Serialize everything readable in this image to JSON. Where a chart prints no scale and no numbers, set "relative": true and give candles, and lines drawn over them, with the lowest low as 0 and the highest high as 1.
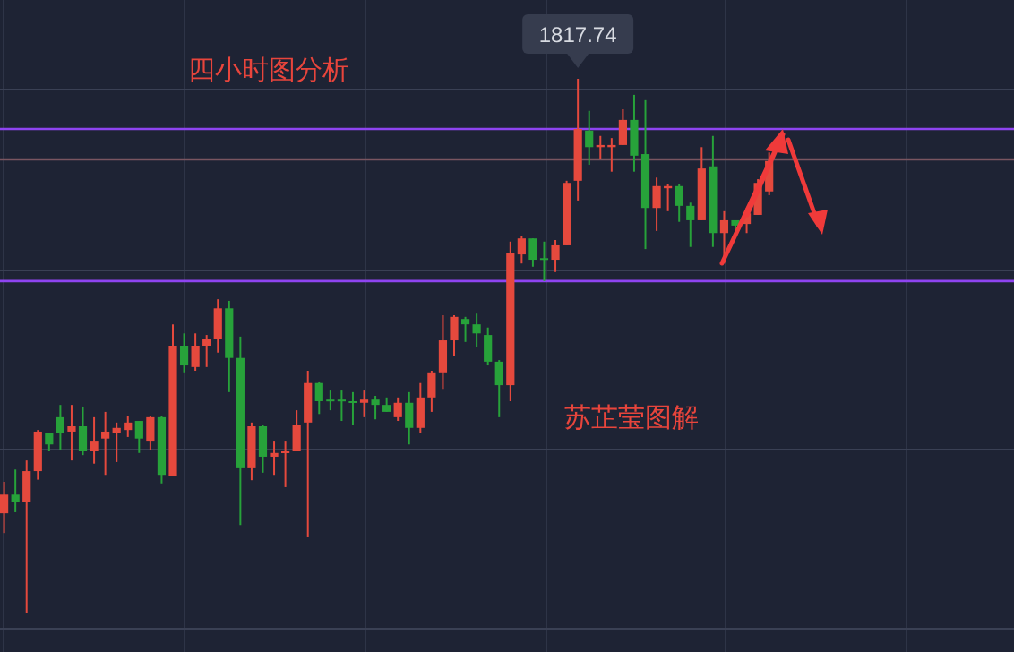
{
  "chart_data": {
    "type": "candlestick",
    "title": "四小时图分析",
    "relative": true,
    "grid": true,
    "categories": [
      null,
      null,
      null,
      null,
      null,
      null,
      null,
      null,
      null,
      null,
      null,
      null,
      null,
      null,
      null,
      null,
      null,
      null,
      null,
      null,
      null,
      null,
      null,
      null,
      null,
      null,
      null,
      null,
      null,
      null,
      null,
      null,
      null,
      null,
      null,
      null,
      null,
      null,
      null,
      null,
      null,
      null,
      null,
      null,
      null,
      null,
      null,
      null,
      null,
      null,
      null,
      null,
      null,
      null,
      null,
      null,
      null,
      null,
      null,
      null,
      null,
      null,
      null,
      null,
      null,
      null,
      null,
      null,
      null
    ],
    "ohlc": [
      [
        0.186,
        0.245,
        0.149,
        0.221
      ],
      [
        0.221,
        0.268,
        0.188,
        0.208
      ],
      [
        0.208,
        0.285,
        0,
        0.265
      ],
      [
        0.265,
        0.342,
        0.249,
        0.339
      ],
      [
        0.336,
        0.336,
        0.302,
        0.315
      ],
      [
        0.366,
        0.389,
        0.305,
        0.336
      ],
      [
        0.339,
        0.389,
        0.285,
        0.349
      ],
      [
        0.349,
        0.386,
        0.295,
        0.302
      ],
      [
        0.302,
        0.366,
        0.279,
        0.322
      ],
      [
        0.326,
        0.376,
        0.258,
        0.339
      ],
      [
        0.336,
        0.356,
        0.282,
        0.346
      ],
      [
        0.342,
        0.369,
        0.329,
        0.356
      ],
      [
        0.359,
        0.359,
        0.299,
        0.326
      ],
      [
        0.322,
        0.369,
        0.305,
        0.366
      ],
      [
        0.366,
        0.369,
        0.242,
        0.258
      ],
      [
        0.255,
        0.54,
        0.255,
        0.5
      ],
      [
        0.5,
        0.523,
        0.45,
        0.463
      ],
      [
        0.46,
        0.523,
        0.453,
        0.5
      ],
      [
        0.5,
        0.52,
        0.46,
        0.513
      ],
      [
        0.513,
        0.587,
        0.487,
        0.57
      ],
      [
        0.57,
        0.584,
        0.413,
        0.477
      ],
      [
        0.477,
        0.517,
        0.164,
        0.272
      ],
      [
        0.272,
        0.356,
        0.248,
        0.349
      ],
      [
        0.349,
        0.352,
        0.262,
        0.292
      ],
      [
        0.292,
        0.322,
        0.258,
        0.299
      ],
      [
        0.299,
        0.322,
        0.235,
        0.302
      ],
      [
        0.302,
        0.379,
        0.302,
        0.352
      ],
      [
        0.356,
        0.453,
        0.141,
        0.43
      ],
      [
        0.43,
        0.433,
        0.372,
        0.396
      ],
      [
        0.399,
        0.416,
        0.379,
        0.396
      ],
      [
        0.399,
        0.416,
        0.359,
        0.396
      ],
      [
        0.396,
        0.413,
        0.352,
        0.393
      ],
      [
        0.393,
        0.416,
        0.366,
        0.399
      ],
      [
        0.399,
        0.406,
        0.362,
        0.389
      ],
      [
        0.389,
        0.403,
        0.376,
        0.376
      ],
      [
        0.366,
        0.403,
        0.359,
        0.393
      ],
      [
        0.393,
        0.413,
        0.315,
        0.346
      ],
      [
        0.346,
        0.43,
        0.336,
        0.403
      ],
      [
        0.403,
        0.453,
        0.376,
        0.45
      ],
      [
        0.45,
        0.557,
        0.419,
        0.51
      ],
      [
        0.51,
        0.557,
        0.48,
        0.554
      ],
      [
        0.55,
        0.554,
        0.507,
        0.54
      ],
      [
        0.54,
        0.56,
        0.497,
        0.523
      ],
      [
        0.52,
        0.534,
        0.463,
        0.47
      ],
      [
        0.47,
        0.473,
        0.366,
        0.426
      ],
      [
        0.426,
        0.695,
        0.396,
        0.674
      ],
      [
        0.671,
        0.705,
        0.654,
        0.701
      ],
      [
        0.701,
        0.701,
        0.648,
        0.661
      ],
      [
        0.664,
        0.695,
        0.621,
        0.661
      ],
      [
        0.661,
        0.698,
        0.638,
        0.688
      ],
      [
        0.688,
        0.809,
        0.688,
        0.805
      ],
      [
        0.809,
        1,
        0.772,
        0.906
      ],
      [
        0.903,
        0.94,
        0.839,
        0.872
      ],
      [
        0.872,
        0.893,
        0.849,
        0.876
      ],
      [
        0.872,
        0.889,
        0.826,
        0.876
      ],
      [
        0.876,
        0.943,
        0.876,
        0.923
      ],
      [
        0.923,
        0.97,
        0.826,
        0.856
      ],
      [
        0.859,
        0.96,
        0.681,
        0.758
      ],
      [
        0.758,
        0.815,
        0.715,
        0.799
      ],
      [
        0.795,
        0.802,
        0.752,
        0.799
      ],
      [
        0.799,
        0.802,
        0.732,
        0.762
      ],
      [
        0.762,
        0.768,
        0.685,
        0.735
      ],
      [
        0.735,
        0.872,
        0.735,
        0.832
      ],
      [
        0.836,
        0.893,
        0.685,
        0.711
      ],
      [
        0.711,
        0.752,
        0.654,
        0.735
      ],
      [
        0.735,
        0.735,
        0.711,
        0.725
      ],
      [
        0.728,
        0.758,
        0.711,
        0.748
      ],
      [
        0.745,
        0.812,
        0.745,
        0.805
      ],
      [
        0.789,
        0.862,
        0.782,
        0.846
      ]
    ],
    "colors": [
      "#e5493d",
      "#27a23a",
      "#e5493d",
      "#e5493d",
      "#27a23a",
      "#27a23a",
      "#e5493d",
      "#27a23a",
      "#e5493d",
      "#e5493d",
      "#e5493d",
      "#e5493d",
      "#27a23a",
      "#e5493d",
      "#27a23a",
      "#e5493d",
      "#27a23a",
      "#e5493d",
      "#e5493d",
      "#e5493d",
      "#27a23a",
      "#27a23a",
      "#e5493d",
      "#27a23a",
      "#e5493d",
      "#e5493d",
      "#e5493d",
      "#e5493d",
      "#27a23a",
      "#27a23a",
      "#27a23a",
      "#27a23a",
      "#e5493d",
      "#27a23a",
      "#27a23a",
      "#e5493d",
      "#27a23a",
      "#e5493d",
      "#e5493d",
      "#e5493d",
      "#e5493d",
      "#27a23a",
      "#27a23a",
      "#27a23a",
      "#27a23a",
      "#e5493d",
      "#e5493d",
      "#27a23a",
      "#27a23a",
      "#e5493d",
      "#e5493d",
      "#e5493d",
      "#27a23a",
      "#e5493d",
      "#e5493d",
      "#e5493d",
      "#27a23a",
      "#27a23a",
      "#e5493d",
      "#e5493d",
      "#27a23a",
      "#27a23a",
      "#e5493d",
      "#27a23a",
      "#e5493d",
      "#27a23a",
      "#e5493d",
      "#e5493d",
      "#e5493d"
    ],
    "ref_lines": [
      {
        "axis": "y",
        "value": 0.906,
        "color": "#8e44f0"
      },
      {
        "axis": "y",
        "value": 0.849,
        "color": "#7a5560"
      },
      {
        "axis": "y",
        "value": 0.621,
        "color": "#8e44f0"
      }
    ],
    "annotations": [
      {
        "text": "1817.74",
        "y": 1
      },
      "苏芷莹图解"
    ]
  }
}
